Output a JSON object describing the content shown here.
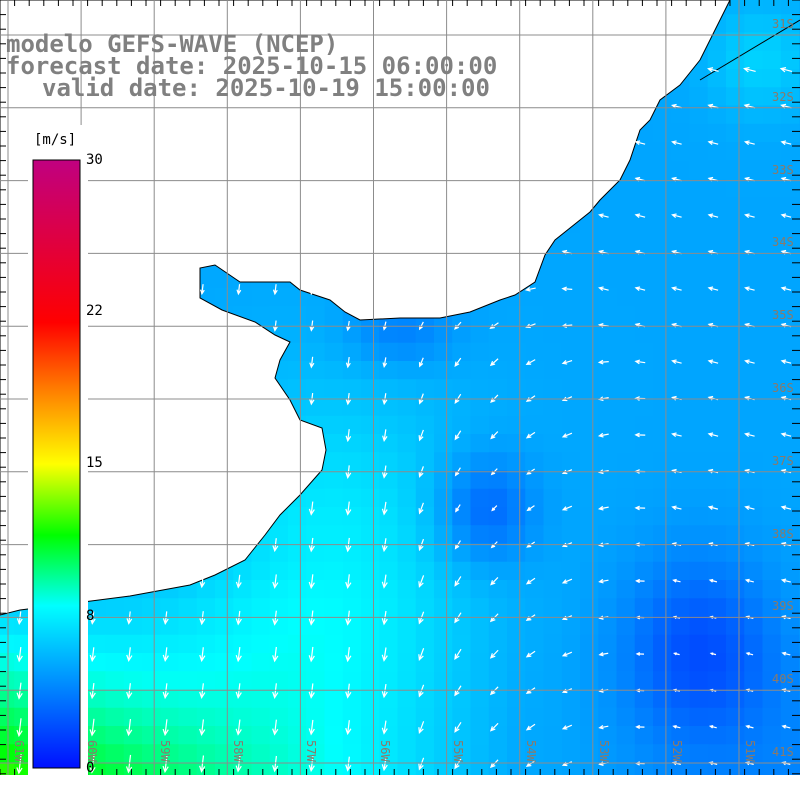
{
  "header": {
    "model": "modelo GEFS-WAVE (NCEP)",
    "forecast_date": "forecast date: 2025-10-15 06:00:00",
    "valid_date": "valid date: 2025-10-19 15:00:00"
  },
  "colorbar": {
    "unit": "[m/s]",
    "ticks": [
      "30",
      "22",
      "15",
      "8",
      "0"
    ],
    "tick_values": [
      30,
      22,
      15,
      8,
      0
    ],
    "colors": [
      "#0010ff",
      "#00ffff",
      "#00ff00",
      "#ffff00",
      "#ff8000",
      "#ff0000",
      "#c00080"
    ]
  },
  "map": {
    "lat_labels": [
      "31S",
      "32S",
      "33S",
      "34S",
      "35S",
      "36S",
      "37S",
      "38S",
      "39S",
      "40S",
      "41S"
    ],
    "lon_labels": [
      "61W",
      "60W",
      "59W",
      "58W",
      "57W",
      "56W",
      "55W",
      "54W",
      "53W",
      "52W",
      "51W"
    ],
    "land_color": "#ffffff",
    "grid_color": "#8c8c8c",
    "arrow_color": "#ffffff"
  }
}
